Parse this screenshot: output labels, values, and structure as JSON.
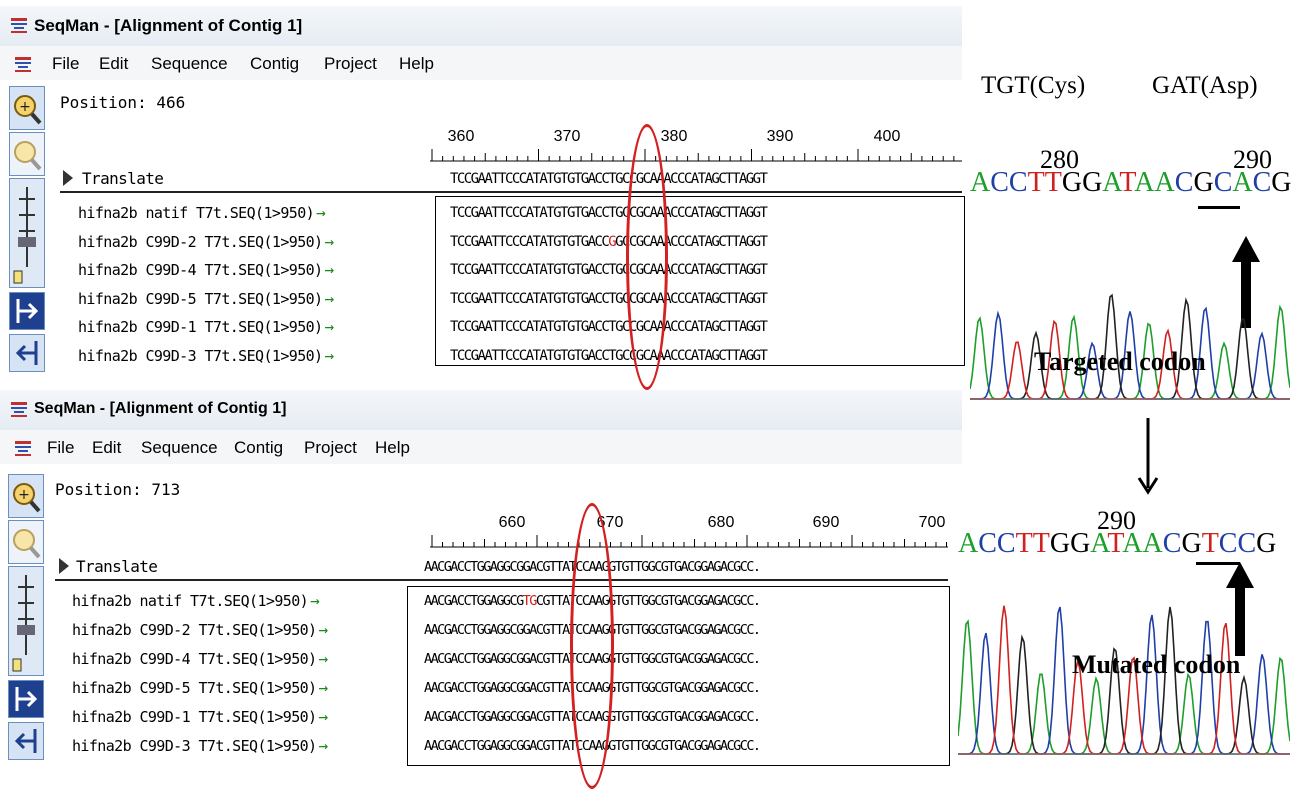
{
  "window1": {
    "title": "SeqMan - [Alignment of Contig 1]",
    "menu": [
      "File",
      "Edit",
      "Sequence",
      "Contig",
      "Project",
      "Help"
    ],
    "position": "Position: 466",
    "ruler": [
      "360",
      "370",
      "380",
      "390",
      "400"
    ],
    "translate_label": "Translate",
    "translate_seq": "TCCGAATTCCCATATGTGTGACCTGCCGCAAACCCATAGCTTAGGT",
    "rows": [
      {
        "label": "hifna2b natif T7t.SEQ(1>950)",
        "seq_a": "TCCGAATTCCCATATGTGTGACC",
        "mut": "",
        "seq_b": "TGCCGCAAACCCATAGCTTAGGT"
      },
      {
        "label": "hifna2b C99D-2 T7t.SEQ(1>950)",
        "seq_a": "TCCGAATTCCCATATGTGTGACC",
        "mut": "G",
        "seq_b": "GCCGCAAACCCATAGCTTAGGT"
      },
      {
        "label": "hifna2b C99D-4 T7t.SEQ(1>950)",
        "seq_a": "TCCGAATTCCCATATGTGTGACC",
        "mut": "",
        "seq_b": "TGCCGCAAACCCATAGCTTAGGT"
      },
      {
        "label": "hifna2b C99D-5 T7t.SEQ(1>950)",
        "seq_a": "TCCGAATTCCCATATGTGTGACC",
        "mut": "",
        "seq_b": "TGCCGCAAACCCATAGCTTAGGT"
      },
      {
        "label": "hifna2b C99D-1 T7t.SEQ(1>950)",
        "seq_a": "TCCGAATTCCCATATGTGTGACC",
        "mut": "",
        "seq_b": "TGCCGCAAACCCATAGCTTAGGT"
      },
      {
        "label": "hifna2b C99D-3 T7t.SEQ(1>950)",
        "seq_a": "TCCGAATTCCCATATGTGTGACC",
        "mut": "",
        "seq_b": "TGCCGCAAACCCATAGCTTAGGT"
      }
    ]
  },
  "window2": {
    "title": "SeqMan - [Alignment of Contig 1]",
    "menu": [
      "File",
      "Edit",
      "Sequence",
      "Contig",
      "Project",
      "Help"
    ],
    "position": "Position: 713",
    "ruler": [
      "660",
      "670",
      "680",
      "690",
      "700"
    ],
    "translate_label": "Translate",
    "translate_seq": "AACGACCTGGAGGCGGACGTTATCCAAGGTGTTGGCGTGACGGAGACGCC.",
    "rows": [
      {
        "label": "hifna2b natif T7t.SEQ(1>950)",
        "seq_a": "AACGACCTGGAGGCG",
        "mut": "TG",
        "seq_b": "CGTTATCCAAGGTGTTGGCGTGACGGAGACGCC."
      },
      {
        "label": "hifna2b C99D-2 T7t.SEQ(1>950)",
        "seq_a": "AACGACCTGGAGGCG",
        "mut": "",
        "seq_b": "GACGTTATCCAAGGTGTTGGCGTGACGGAGACGCC."
      },
      {
        "label": "hifna2b C99D-4 T7t.SEQ(1>950)",
        "seq_a": "AACGACCTGGAGGCG",
        "mut": "",
        "seq_b": "GACGTTATCCAAGGTGTTGGCGTGACGGAGACGCC."
      },
      {
        "label": "hifna2b C99D-5 T7t.SEQ(1>950)",
        "seq_a": "AACGACCTGGAGGCG",
        "mut": "",
        "seq_b": "GACGTTATCCAAGGTGTTGGCGTGACGGAGACGCC."
      },
      {
        "label": "hifna2b C99D-1 T7t.SEQ(1>950)",
        "seq_a": "AACGACCTGGAGGCG",
        "mut": "",
        "seq_b": "GACGTTATCCAAGGTGTTGGCGTGACGGAGACGCC."
      },
      {
        "label": "hifna2b C99D-3 T7t.SEQ(1>950)",
        "seq_a": "AACGACCTGGAGGCG",
        "mut": "",
        "seq_b": "GACGTTATCCAAGGTGTTGGCGTGACGGAGACGCC."
      }
    ]
  },
  "annotation": {
    "codon1": "TGT(Cys)",
    "codon2": "GAT(Asp)",
    "pos_280": "280",
    "pos_290_top": "290",
    "pos_290_bottom": "290",
    "targeted_label": "Targeted codon",
    "mutated_label": "Mutated codon",
    "top_sequence": "ACCTTGGATAACGCACG",
    "bottom_sequence": "ACCTTGGATAACGTCCG"
  },
  "colors": {
    "A": "#1e9e2a",
    "C": "#1f3fa8",
    "T": "#d02020",
    "G": "#000000",
    "ellipse": "#d42020"
  }
}
